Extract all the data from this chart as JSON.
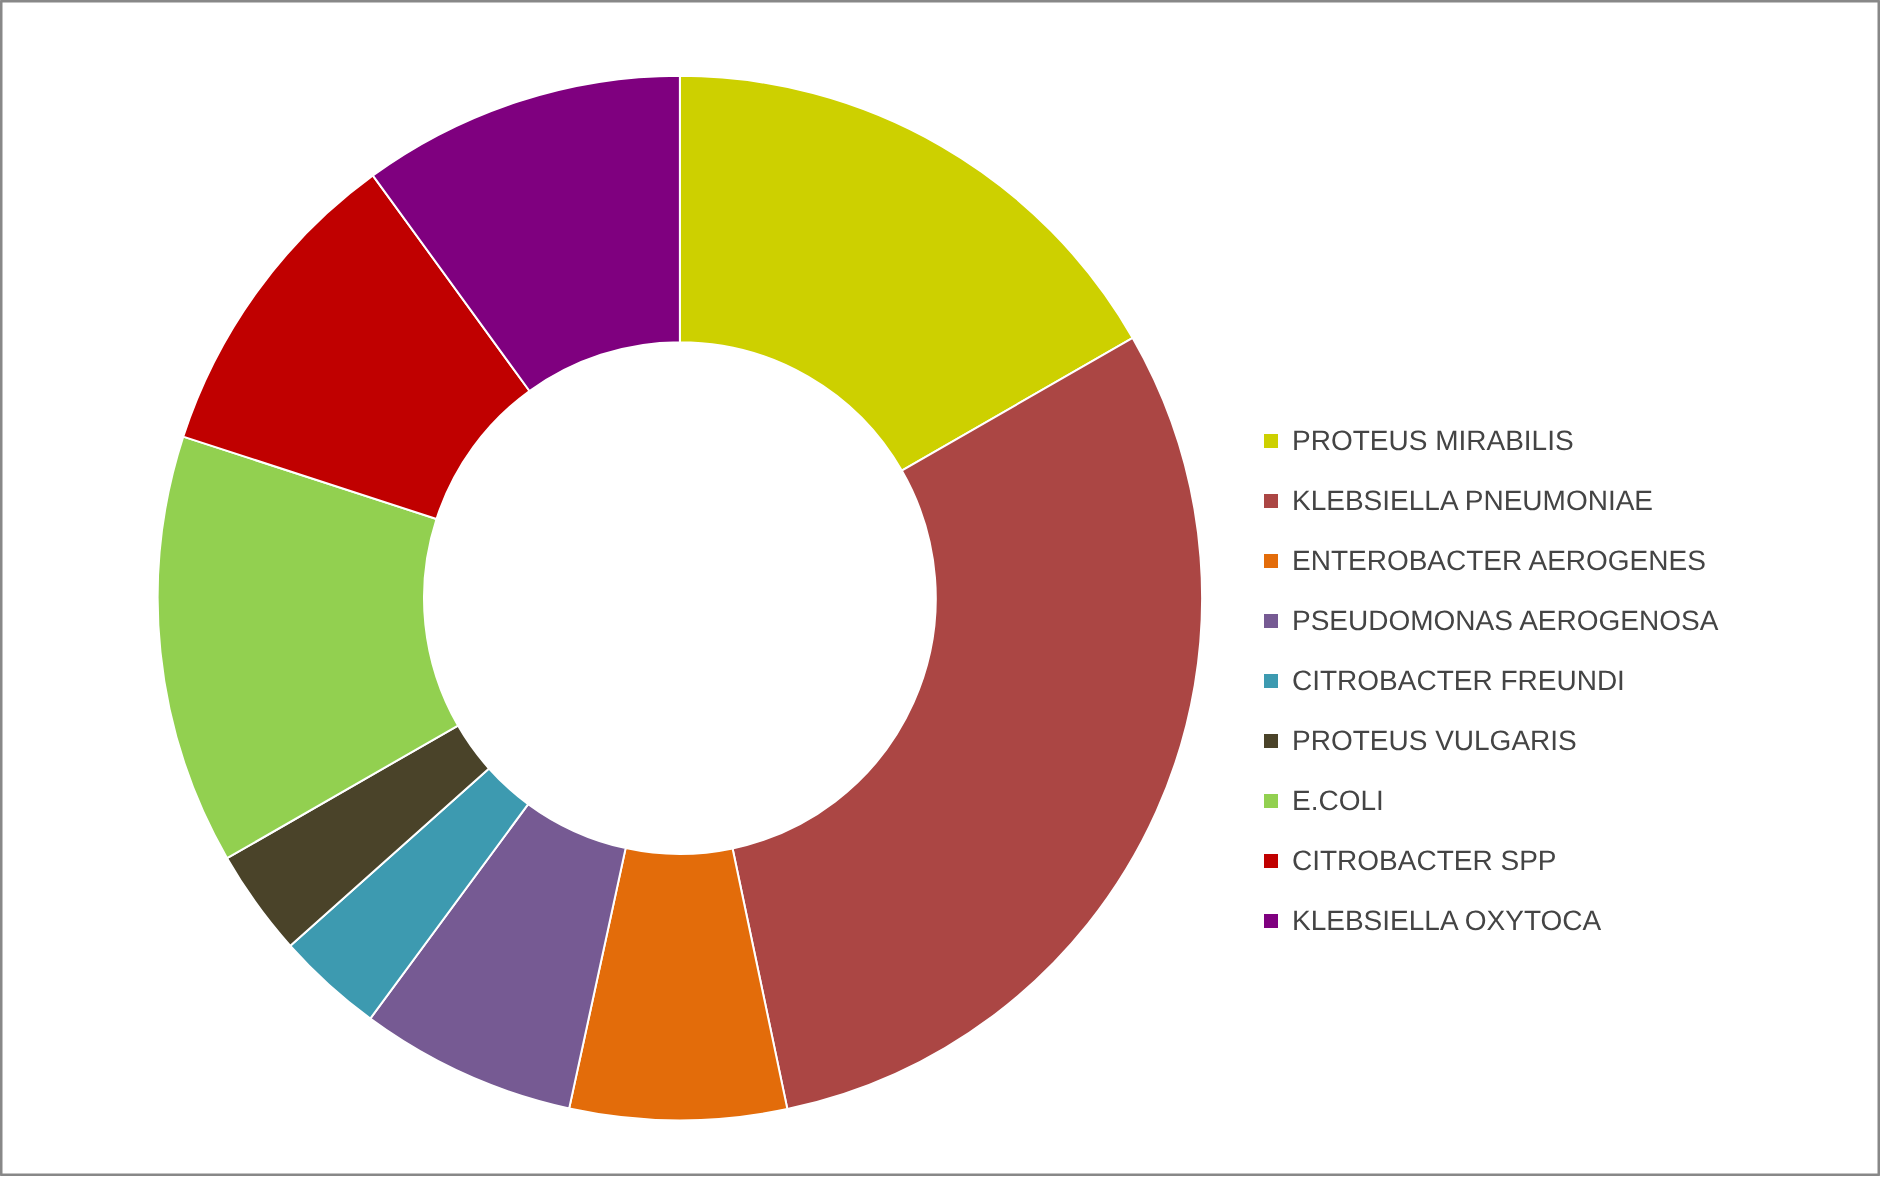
{
  "chart_data": {
    "type": "donut",
    "categories": [
      "PROTEUS MIRABILIS",
      "KLEBSIELLA PNEUMONIAE",
      "ENTEROBACTER AEROGENES",
      "PSEUDOMONAS AEROGENOSA",
      "CITROBACTER FREUNDI",
      "PROTEUS VULGARIS",
      "E.COLI",
      "CITROBACTER SPP",
      "KLEBSIELLA OXYTOCA"
    ],
    "values": [
      16.7,
      30,
      6.7,
      6.7,
      3.3,
      3.3,
      13.3,
      10,
      10
    ],
    "colors": [
      "#cdd000",
      "#ab4644",
      "#e36c0a",
      "#765a93",
      "#3d9ab0",
      "#4a4329",
      "#92d050",
      "#c00000",
      "#7f007f"
    ],
    "legend": "right"
  }
}
